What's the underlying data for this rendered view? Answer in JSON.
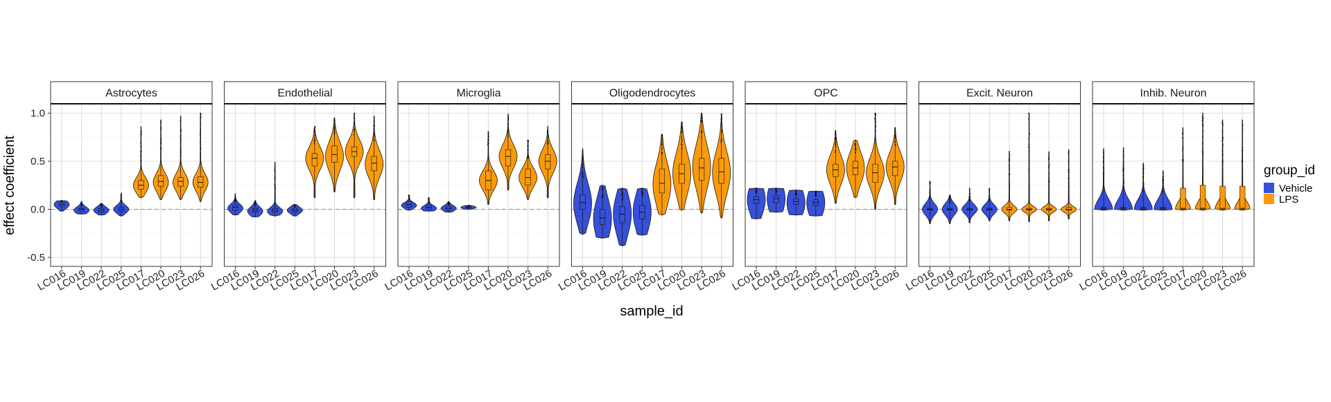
{
  "chart_data": {
    "type": "violin",
    "ylabel": "effect coefficient",
    "xlabel": "sample_id",
    "ylim": [
      -0.58,
      1.18
    ],
    "yticks": [
      -0.5,
      0.0,
      0.5,
      1.0
    ],
    "ytick_labels": [
      "-0.5",
      "0.0",
      "0.5",
      "1.0"
    ],
    "reference_line": 0,
    "grid": true,
    "legend": {
      "title": "group_id",
      "placement": "right",
      "entries": [
        {
          "name": "Vehicle",
          "color": "#3650D9"
        },
        {
          "name": "LPS",
          "color": "#F99A0D"
        }
      ]
    },
    "categories": [
      "LC016",
      "LC019",
      "LC022",
      "LC025",
      "LC017",
      "LC020",
      "LC023",
      "LC026"
    ],
    "groups": [
      "Vehicle",
      "Vehicle",
      "Vehicle",
      "Vehicle",
      "LPS",
      "LPS",
      "LPS",
      "LPS"
    ],
    "panels": [
      {
        "name": "Astrocytes",
        "violins": [
          {
            "min": -0.02,
            "q1": 0.03,
            "median": 0.05,
            "q3": 0.07,
            "max": 0.09,
            "spread": 0.04,
            "peak": 0.05
          },
          {
            "min": -0.05,
            "q1": -0.02,
            "median": 0.0,
            "q3": 0.01,
            "max": 0.08,
            "spread": 0.035,
            "peak": -0.01
          },
          {
            "min": -0.06,
            "q1": -0.03,
            "median": -0.01,
            "q3": 0.01,
            "max": 0.06,
            "spread": 0.035,
            "peak": -0.01
          },
          {
            "min": -0.07,
            "q1": -0.02,
            "median": 0.0,
            "q3": 0.02,
            "max": 0.17,
            "spread": 0.04,
            "peak": 0.0
          },
          {
            "min": 0.12,
            "q1": 0.21,
            "median": 0.25,
            "q3": 0.3,
            "max": 0.86,
            "spread": 0.08,
            "peak": 0.25
          },
          {
            "min": 0.1,
            "q1": 0.24,
            "median": 0.29,
            "q3": 0.35,
            "max": 0.93,
            "spread": 0.09,
            "peak": 0.28
          },
          {
            "min": 0.1,
            "q1": 0.24,
            "median": 0.29,
            "q3": 0.33,
            "max": 0.97,
            "spread": 0.09,
            "peak": 0.28
          },
          {
            "min": 0.08,
            "q1": 0.23,
            "median": 0.28,
            "q3": 0.34,
            "max": 1.0,
            "spread": 0.09,
            "peak": 0.28
          }
        ]
      },
      {
        "name": "Endothelial",
        "violins": [
          {
            "min": -0.06,
            "q1": -0.01,
            "median": 0.02,
            "q3": 0.04,
            "max": 0.16,
            "spread": 0.045,
            "peak": 0.01
          },
          {
            "min": -0.08,
            "q1": -0.03,
            "median": -0.01,
            "q3": 0.01,
            "max": 0.09,
            "spread": 0.045,
            "peak": -0.02
          },
          {
            "min": -0.07,
            "q1": -0.03,
            "median": -0.01,
            "q3": 0.01,
            "max": 0.49,
            "spread": 0.04,
            "peak": -0.02
          },
          {
            "min": -0.07,
            "q1": -0.03,
            "median": -0.01,
            "q3": 0.01,
            "max": 0.05,
            "spread": 0.035,
            "peak": -0.01
          },
          {
            "min": 0.12,
            "q1": 0.45,
            "median": 0.53,
            "q3": 0.58,
            "max": 0.86,
            "spread": 0.12,
            "peak": 0.53
          },
          {
            "min": 0.18,
            "q1": 0.49,
            "median": 0.57,
            "q3": 0.66,
            "max": 0.95,
            "spread": 0.15,
            "peak": 0.55
          },
          {
            "min": 0.12,
            "q1": 0.55,
            "median": 0.6,
            "q3": 0.65,
            "max": 1.0,
            "spread": 0.12,
            "peak": 0.6
          },
          {
            "min": 0.1,
            "q1": 0.4,
            "median": 0.48,
            "q3": 0.55,
            "max": 0.97,
            "spread": 0.14,
            "peak": 0.47
          }
        ]
      },
      {
        "name": "Microglia",
        "violins": [
          {
            "min": -0.01,
            "q1": 0.02,
            "median": 0.05,
            "q3": 0.08,
            "max": 0.15,
            "spread": 0.03,
            "peak": 0.04
          },
          {
            "min": -0.02,
            "q1": 0.0,
            "median": 0.02,
            "q3": 0.04,
            "max": 0.12,
            "spread": 0.03,
            "peak": 0.01
          },
          {
            "min": -0.03,
            "q1": -0.01,
            "median": 0.01,
            "q3": 0.03,
            "max": 0.08,
            "spread": 0.03,
            "peak": 0.01
          },
          {
            "min": 0.0,
            "q1": 0.01,
            "median": 0.02,
            "q3": 0.03,
            "max": 0.04,
            "spread": 0.015,
            "peak": 0.02
          },
          {
            "min": 0.05,
            "q1": 0.2,
            "median": 0.3,
            "q3": 0.4,
            "max": 0.81,
            "spread": 0.1,
            "peak": 0.3
          },
          {
            "min": 0.2,
            "q1": 0.45,
            "median": 0.55,
            "q3": 0.62,
            "max": 0.99,
            "spread": 0.12,
            "peak": 0.55
          },
          {
            "min": 0.1,
            "q1": 0.25,
            "median": 0.33,
            "q3": 0.42,
            "max": 0.72,
            "spread": 0.1,
            "peak": 0.33
          },
          {
            "min": 0.12,
            "q1": 0.42,
            "median": 0.5,
            "q3": 0.57,
            "max": 0.86,
            "spread": 0.12,
            "peak": 0.5
          }
        ]
      },
      {
        "name": "Oligodendrocytes",
        "violins": [
          {
            "min": -0.26,
            "q1": 0.0,
            "median": 0.07,
            "q3": 0.15,
            "max": 0.63,
            "spread": 0.21,
            "peak": 0.06
          },
          {
            "min": -0.3,
            "q1": -0.16,
            "median": -0.09,
            "q3": 0.0,
            "max": 0.25,
            "spread": 0.22,
            "peak": -0.1
          },
          {
            "min": -0.38,
            "q1": -0.14,
            "median": -0.05,
            "q3": 0.03,
            "max": 0.22,
            "spread": 0.22,
            "peak": -0.05
          },
          {
            "min": -0.27,
            "q1": -0.1,
            "median": -0.03,
            "q3": 0.04,
            "max": 0.22,
            "spread": 0.21,
            "peak": -0.03
          },
          {
            "min": -0.06,
            "q1": 0.17,
            "median": 0.27,
            "q3": 0.42,
            "max": 0.78,
            "spread": 0.22,
            "peak": 0.26
          },
          {
            "min": -0.01,
            "q1": 0.27,
            "median": 0.37,
            "q3": 0.47,
            "max": 0.91,
            "spread": 0.22,
            "peak": 0.37
          },
          {
            "min": -0.04,
            "q1": 0.3,
            "median": 0.43,
            "q3": 0.53,
            "max": 1.0,
            "spread": 0.23,
            "peak": 0.44
          },
          {
            "min": -0.09,
            "q1": 0.27,
            "median": 0.39,
            "q3": 0.53,
            "max": 0.99,
            "spread": 0.22,
            "peak": 0.38
          }
        ]
      },
      {
        "name": "OPC",
        "violins": [
          {
            "min": -0.1,
            "q1": 0.06,
            "median": 0.1,
            "q3": 0.13,
            "max": 0.22,
            "spread": 0.17,
            "peak": 0.1
          },
          {
            "min": -0.03,
            "q1": 0.07,
            "median": 0.11,
            "q3": 0.14,
            "max": 0.22,
            "spread": 0.17,
            "peak": 0.11
          },
          {
            "min": -0.06,
            "q1": 0.05,
            "median": 0.08,
            "q3": 0.11,
            "max": 0.2,
            "spread": 0.16,
            "peak": 0.07
          },
          {
            "min": -0.07,
            "q1": 0.04,
            "median": 0.07,
            "q3": 0.1,
            "max": 0.19,
            "spread": 0.16,
            "peak": 0.07
          },
          {
            "min": 0.06,
            "q1": 0.34,
            "median": 0.41,
            "q3": 0.47,
            "max": 0.82,
            "spread": 0.15,
            "peak": 0.41
          },
          {
            "min": 0.12,
            "q1": 0.36,
            "median": 0.43,
            "q3": 0.5,
            "max": 0.72,
            "spread": 0.16,
            "peak": 0.43
          },
          {
            "min": 0.0,
            "q1": 0.28,
            "median": 0.38,
            "q3": 0.47,
            "max": 1.0,
            "spread": 0.15,
            "peak": 0.38
          },
          {
            "min": 0.05,
            "q1": 0.35,
            "median": 0.44,
            "q3": 0.5,
            "max": 0.85,
            "spread": 0.15,
            "peak": 0.44
          }
        ]
      },
      {
        "name": "Excit. Neuron",
        "violins": [
          {
            "min": -0.15,
            "q1": -0.01,
            "median": 0.0,
            "q3": 0.01,
            "max": 0.29,
            "spread": 0.06,
            "peak": 0.0
          },
          {
            "min": -0.15,
            "q1": -0.01,
            "median": 0.0,
            "q3": 0.01,
            "max": 0.15,
            "spread": 0.06,
            "peak": 0.0
          },
          {
            "min": -0.14,
            "q1": -0.01,
            "median": 0.0,
            "q3": 0.01,
            "max": 0.22,
            "spread": 0.05,
            "peak": 0.0
          },
          {
            "min": -0.12,
            "q1": -0.01,
            "median": 0.0,
            "q3": 0.01,
            "max": 0.22,
            "spread": 0.05,
            "peak": 0.0
          },
          {
            "min": -0.12,
            "q1": -0.01,
            "median": 0.0,
            "q3": 0.02,
            "max": 0.6,
            "spread": 0.04,
            "peak": 0.0
          },
          {
            "min": -0.13,
            "q1": -0.01,
            "median": 0.0,
            "q3": 0.01,
            "max": 1.0,
            "spread": 0.03,
            "peak": 0.0
          },
          {
            "min": -0.12,
            "q1": -0.01,
            "median": 0.0,
            "q3": 0.01,
            "max": 0.6,
            "spread": 0.03,
            "peak": 0.0
          },
          {
            "min": -0.1,
            "q1": -0.01,
            "median": 0.0,
            "q3": 0.02,
            "max": 0.62,
            "spread": 0.03,
            "peak": 0.0
          }
        ]
      },
      {
        "name": "Inhib. Neuron",
        "violins": [
          {
            "min": -0.01,
            "q1": 0.0,
            "median": 0.01,
            "q3": 0.02,
            "max": 0.63,
            "spread": 0.1,
            "peak": 0.0
          },
          {
            "min": -0.01,
            "q1": 0.0,
            "median": 0.01,
            "q3": 0.02,
            "max": 0.64,
            "spread": 0.1,
            "peak": 0.0
          },
          {
            "min": -0.01,
            "q1": 0.0,
            "median": 0.01,
            "q3": 0.02,
            "max": 0.48,
            "spread": 0.1,
            "peak": 0.0
          },
          {
            "min": -0.01,
            "q1": 0.0,
            "median": 0.01,
            "q3": 0.02,
            "max": 0.4,
            "spread": 0.1,
            "peak": 0.0
          },
          {
            "min": -0.01,
            "q1": 0.0,
            "median": 0.01,
            "q3": 0.22,
            "max": 0.85,
            "spread": 0.08,
            "peak": 0.0
          },
          {
            "min": -0.01,
            "q1": 0.0,
            "median": 0.01,
            "q3": 0.25,
            "max": 1.0,
            "spread": 0.08,
            "peak": 0.0
          },
          {
            "min": -0.01,
            "q1": 0.0,
            "median": 0.01,
            "q3": 0.24,
            "max": 0.93,
            "spread": 0.08,
            "peak": 0.0
          },
          {
            "min": -0.01,
            "q1": 0.0,
            "median": 0.01,
            "q3": 0.24,
            "max": 0.93,
            "spread": 0.08,
            "peak": 0.0
          }
        ]
      }
    ]
  }
}
